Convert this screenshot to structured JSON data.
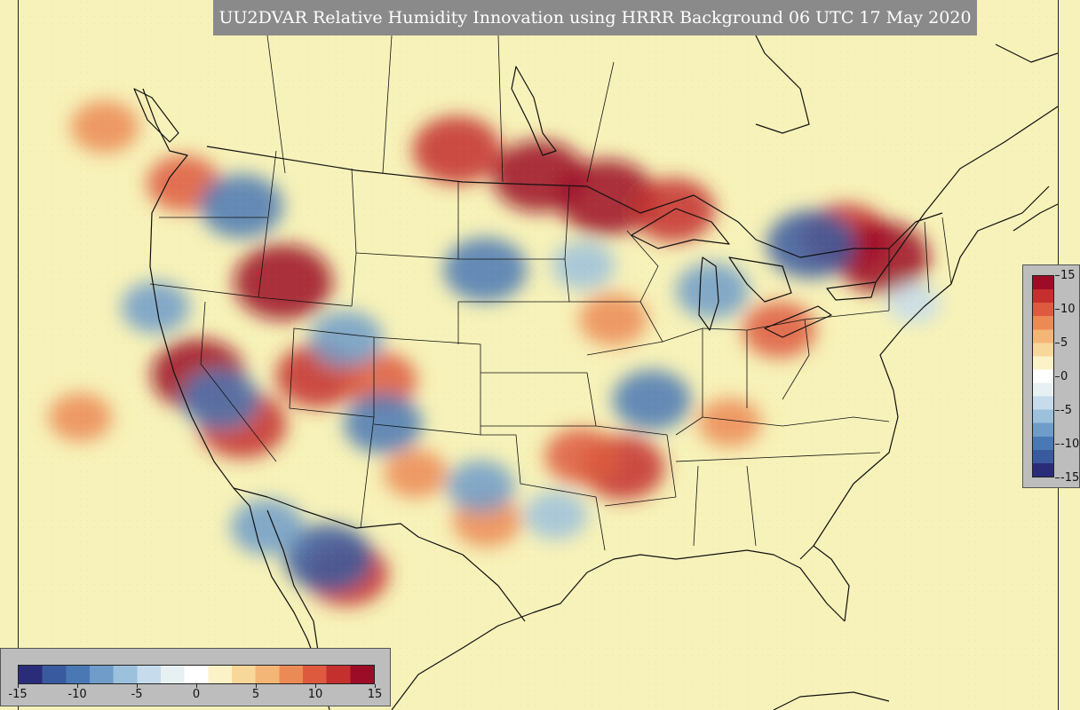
{
  "title": "UU2DVAR Relative Humidity Innovation using HRRR Background 06 UTC 17 May 2020",
  "colorbar": {
    "min": -15,
    "max": 15,
    "vertical_labels": [
      "15",
      "10",
      "5",
      "0",
      "-5",
      "-10",
      "-15"
    ],
    "horizontal_labels": [
      "-15",
      "-10",
      "-5",
      "0",
      "5",
      "10",
      "15"
    ],
    "colors": [
      "#2a2c7a",
      "#3a5aa0",
      "#4a78b4",
      "#6f9cc9",
      "#9cc1dc",
      "#c6dcec",
      "#e7f1f4",
      "#ffffff",
      "#fbf2c8",
      "#f8d79a",
      "#f4b676",
      "#ec8a55",
      "#dd5a3e",
      "#c3302d",
      "#9c0c27"
    ]
  },
  "map": {
    "background_color": "#f7f2b9",
    "anomaly_blobs": [
      {
        "lon": -113.5,
        "lat": 44.0,
        "value": 14
      },
      {
        "lon": -121.0,
        "lat": 39.0,
        "value": 13
      },
      {
        "lon": -118.0,
        "lat": 36.0,
        "value": 12
      },
      {
        "lon": -111.5,
        "lat": 38.5,
        "value": 11
      },
      {
        "lon": -106.5,
        "lat": 38.0,
        "value": 9
      },
      {
        "lon": -89.0,
        "lat": 48.5,
        "value": 14
      },
      {
        "lon": -94.0,
        "lat": 49.5,
        "value": 13
      },
      {
        "lon": -100.0,
        "lat": 51.0,
        "value": 12
      },
      {
        "lon": -84.0,
        "lat": 48.0,
        "value": 11
      },
      {
        "lon": -71.0,
        "lat": 47.0,
        "value": 12
      },
      {
        "lon": -68.0,
        "lat": 46.0,
        "value": 13
      },
      {
        "lon": -75.0,
        "lat": 41.5,
        "value": 9
      },
      {
        "lon": -86.5,
        "lat": 33.0,
        "value": 11
      },
      {
        "lon": -90.0,
        "lat": 33.5,
        "value": 9
      },
      {
        "lon": -88.0,
        "lat": 41.5,
        "value": 8
      },
      {
        "lon": -120.0,
        "lat": 50.0,
        "value": 9
      },
      {
        "lon": -125.0,
        "lat": 53.5,
        "value": 8
      },
      {
        "lon": -110.5,
        "lat": 27.0,
        "value": 11
      },
      {
        "lon": -104.0,
        "lat": 32.5,
        "value": 7
      },
      {
        "lon": -98.0,
        "lat": 29.5,
        "value": 8
      },
      {
        "lon": -78.0,
        "lat": 36.0,
        "value": 7
      },
      {
        "lon": -116.0,
        "lat": 48.5,
        "value": -11
      },
      {
        "lon": -119.5,
        "lat": 37.5,
        "value": -10
      },
      {
        "lon": -98.0,
        "lat": 44.0,
        "value": -11
      },
      {
        "lon": -109.0,
        "lat": 40.5,
        "value": -9
      },
      {
        "lon": -106.5,
        "lat": 35.5,
        "value": -10
      },
      {
        "lon": -112.0,
        "lat": 28.0,
        "value": -12
      },
      {
        "lon": -117.0,
        "lat": 30.0,
        "value": -9
      },
      {
        "lon": -73.5,
        "lat": 46.5,
        "value": -12
      },
      {
        "lon": -80.5,
        "lat": 43.5,
        "value": -9
      },
      {
        "lon": -84.5,
        "lat": 37.0,
        "value": -10
      },
      {
        "lon": -98.5,
        "lat": 31.5,
        "value": -8
      },
      {
        "lon": -123.5,
        "lat": 43.0,
        "value": -8
      },
      {
        "lon": -90.5,
        "lat": 44.5,
        "value": -7
      },
      {
        "lon": -92.0,
        "lat": 30.0,
        "value": -7
      },
      {
        "lon": -131.0,
        "lat": 37.0,
        "value": 7
      },
      {
        "lon": -65.0,
        "lat": 43.5,
        "value": -5
      }
    ]
  }
}
